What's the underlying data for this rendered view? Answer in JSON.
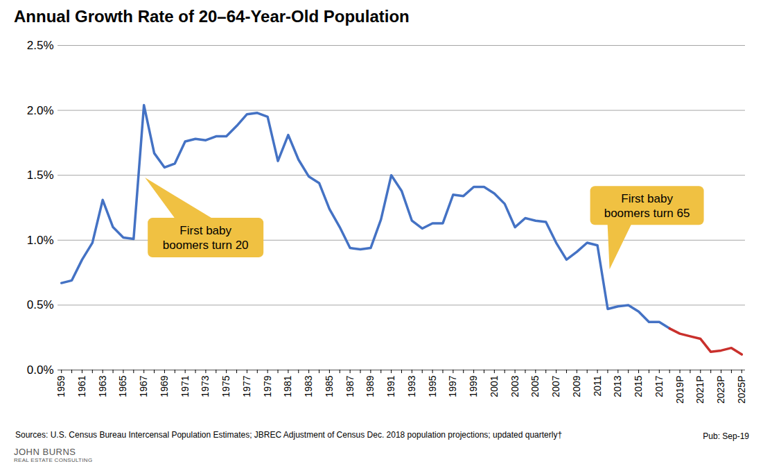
{
  "chart_data": {
    "type": "line",
    "title": "Annual Growth Rate of 20–64-Year-Old Population",
    "categories": [
      "1959",
      null,
      "1961",
      null,
      "1963",
      null,
      "1965",
      null,
      "1967",
      null,
      "1969",
      null,
      "1971",
      null,
      "1973",
      null,
      "1975",
      null,
      "1977",
      null,
      "1979",
      null,
      "1981",
      null,
      "1983",
      null,
      "1985",
      null,
      "1987",
      null,
      "1989",
      null,
      "1991",
      null,
      "1993",
      null,
      "1995",
      null,
      "1997",
      null,
      "1999",
      null,
      "2001",
      null,
      "2003",
      null,
      "2005",
      null,
      "2007",
      null,
      "2009",
      null,
      "2011",
      null,
      "2013",
      null,
      "2015",
      null,
      "2017",
      null,
      "2019P",
      null,
      "2021P",
      null,
      "2023P",
      null,
      "2025P"
    ],
    "series": [
      {
        "color": "#4472c4",
        "values": [
          0.67,
          0.69,
          0.85,
          0.98,
          1.31,
          1.1,
          1.02,
          1.01,
          2.04,
          1.67,
          1.56,
          1.59,
          1.76,
          1.78,
          1.77,
          1.8,
          1.8,
          1.88,
          1.97,
          1.98,
          1.95,
          1.61,
          1.81,
          1.62,
          1.49,
          1.44,
          1.24,
          1.1,
          0.94,
          0.93,
          0.94,
          1.16,
          1.5,
          1.38,
          1.15,
          1.09,
          1.13,
          1.13,
          1.35,
          1.34,
          1.41,
          1.41,
          1.36,
          1.28,
          1.1,
          1.17,
          1.15,
          1.14,
          0.98,
          0.85,
          0.91,
          0.98,
          0.96,
          0.47,
          0.49,
          0.5,
          0.45,
          0.37,
          0.37,
          0.32,
          null,
          null,
          null,
          null,
          null,
          null,
          null
        ]
      },
      {
        "color": "#c9302c",
        "values": [
          null,
          null,
          null,
          null,
          null,
          null,
          null,
          null,
          null,
          null,
          null,
          null,
          null,
          null,
          null,
          null,
          null,
          null,
          null,
          null,
          null,
          null,
          null,
          null,
          null,
          null,
          null,
          null,
          null,
          null,
          null,
          null,
          null,
          null,
          null,
          null,
          null,
          null,
          null,
          null,
          null,
          null,
          null,
          null,
          null,
          null,
          null,
          null,
          null,
          null,
          null,
          null,
          null,
          null,
          null,
          null,
          null,
          null,
          null,
          0.32,
          0.28,
          0.26,
          0.24,
          0.14,
          0.15,
          0.17,
          0.12
        ]
      }
    ],
    "ylim": [
      0,
      2.5
    ],
    "yticks": [
      {
        "value": 0,
        "label": "0.0%"
      },
      {
        "value": 0.5,
        "label": "0.5%"
      },
      {
        "value": 1,
        "label": "1.0%"
      },
      {
        "value": 1.5,
        "label": "1.5%"
      },
      {
        "value": 2,
        "label": "2.0%"
      },
      {
        "value": 2.5,
        "label": "2.5%"
      }
    ],
    "grid": true,
    "annotations": [
      {
        "text": "First baby boomers turn 20",
        "category": "1967"
      },
      {
        "text": "First baby boomers turn 65",
        "category": "2011"
      }
    ],
    "source": "Sources: U.S. Census Bureau Intercensal Population Estimates; JBREC Adjustment of Census Dec. 2018 population projections; updated quarterly†",
    "publication": "Pub: Sep-19",
    "logo": {
      "name": "JOHN BURNS",
      "tagline": "REAL ESTATE CONSULTING"
    }
  }
}
